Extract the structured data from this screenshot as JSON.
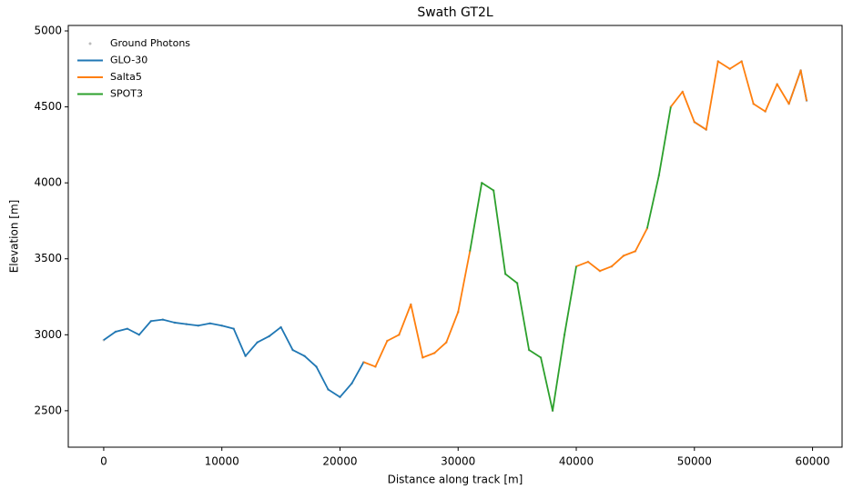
{
  "chart_data": {
    "type": "line",
    "title": "Swath GT2L",
    "x_label": "Distance along track [m]",
    "y_label": "Elevation [m]",
    "x": [
      0,
      1000,
      2000,
      3000,
      4000,
      5000,
      6000,
      7000,
      8000,
      9000,
      10000,
      11000,
      12000,
      13000,
      14000,
      15000,
      16000,
      17000,
      18000,
      19000,
      20000,
      21000,
      22000,
      23000,
      24000,
      25000,
      26000,
      27000,
      28000,
      29000,
      30000,
      31000,
      32000,
      33000,
      34000,
      35000,
      36000,
      37000,
      38000,
      39000,
      40000,
      41000,
      42000,
      43000,
      44000,
      45000,
      46000,
      47000,
      48000,
      49000,
      50000,
      51000,
      52000,
      53000,
      54000,
      55000,
      56000,
      57000,
      58000,
      59000,
      59500
    ],
    "series": [
      {
        "name": "Ground Photons",
        "type": "scatter",
        "color": "#bbbbbb",
        "values": [
          2965,
          3020,
          3040,
          3000,
          3090,
          3100,
          3080,
          3070,
          3060,
          3075,
          3060,
          3040,
          2860,
          2950,
          2990,
          3050,
          2900,
          2860,
          2790,
          2640,
          2590,
          2680,
          2820,
          2790,
          2960,
          3000,
          3200,
          2850,
          2880,
          2950,
          3150,
          3550,
          4000,
          3950,
          3400,
          3340,
          2900,
          2850,
          2500,
          3000,
          3450,
          3480,
          3420,
          3450,
          3520,
          3550,
          3700,
          4050,
          4500,
          4600,
          4400,
          4350,
          4800,
          4750,
          4800,
          4520,
          4470,
          4650,
          4520,
          4740,
          4540
        ]
      },
      {
        "name": "GLO-30",
        "color": "#1f77b4",
        "values": [
          2965,
          3020,
          3040,
          3000,
          3090,
          3100,
          3080,
          3070,
          3060,
          3075,
          3060,
          3040,
          2860,
          2950,
          2990,
          3050,
          2900,
          2860,
          2790,
          2640,
          2590,
          2680,
          2820,
          null,
          null,
          null,
          null,
          null,
          null,
          null,
          null,
          null,
          null,
          null,
          null,
          null,
          null,
          null,
          null,
          null,
          null,
          null,
          null,
          null,
          null,
          null,
          null,
          null,
          null,
          null,
          4400,
          4350,
          null,
          null,
          null,
          null,
          null,
          null,
          4520,
          4740,
          4540
        ]
      },
      {
        "name": "Salta5",
        "color": "#ff7f0e",
        "values": [
          null,
          null,
          null,
          null,
          null,
          null,
          null,
          null,
          null,
          null,
          null,
          null,
          null,
          null,
          null,
          null,
          null,
          null,
          null,
          null,
          null,
          null,
          2820,
          2790,
          2960,
          3000,
          3200,
          2850,
          2880,
          2950,
          3150,
          3550,
          null,
          null,
          null,
          null,
          null,
          null,
          null,
          null,
          3450,
          3480,
          3420,
          3450,
          3520,
          3550,
          3700,
          null,
          4500,
          4600,
          4400,
          4350,
          4800,
          4750,
          4800,
          4520,
          4470,
          4650,
          4520,
          4740,
          4540
        ]
      },
      {
        "name": "SPOT3",
        "color": "#2ca02c",
        "values": [
          null,
          null,
          null,
          null,
          null,
          null,
          null,
          null,
          null,
          null,
          null,
          null,
          null,
          null,
          null,
          null,
          null,
          null,
          null,
          null,
          null,
          null,
          null,
          null,
          null,
          null,
          null,
          null,
          null,
          null,
          null,
          3550,
          4000,
          3950,
          3400,
          3340,
          2900,
          2850,
          2500,
          3000,
          3450,
          null,
          null,
          null,
          null,
          null,
          3700,
          4050,
          4500,
          null,
          null,
          null,
          null,
          null,
          null,
          null,
          null,
          null,
          null,
          null,
          null
        ]
      }
    ],
    "xlim": [
      -3000,
      62500
    ],
    "ylim": [
      2260,
      5036
    ],
    "xticks": [
      0,
      10000,
      20000,
      30000,
      40000,
      50000,
      60000
    ],
    "yticks": [
      2500,
      3000,
      3500,
      4000,
      4500,
      5000
    ],
    "legend": "upper left"
  }
}
